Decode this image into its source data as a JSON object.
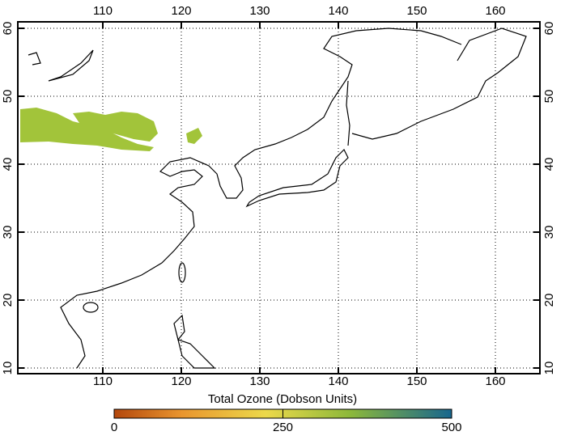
{
  "map": {
    "lon_ticks": [
      110,
      120,
      130,
      140,
      150,
      160
    ],
    "lat_ticks": [
      10,
      20,
      30,
      40,
      50,
      60
    ],
    "colorbar": {
      "label": "Total Ozone (Dobson Units)",
      "ticks": [
        0,
        250,
        500
      ]
    }
  }
}
